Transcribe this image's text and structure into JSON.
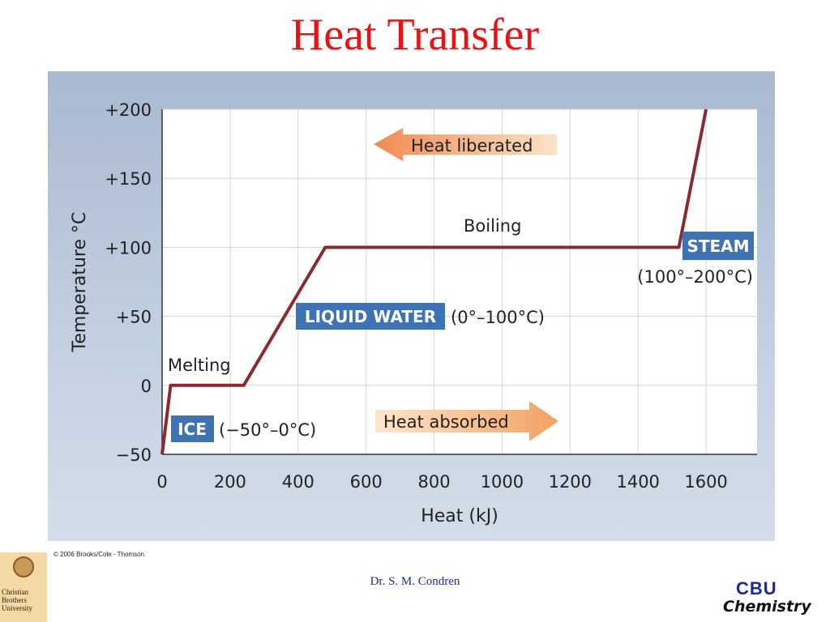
{
  "slide": {
    "title": "Heat Transfer",
    "copyright": "© 2006 Brooks/Cole - Thomson",
    "footer": "Dr. S. M. Condren",
    "university_logo_text": "Christian Brothers University",
    "cbu_logo_top": "CBU",
    "cbu_logo_bottom": "Chemistry"
  },
  "chart_data": {
    "type": "line",
    "title": "",
    "xlabel": "Heat (kJ)",
    "ylabel": "Temperature °C",
    "xlim": [
      0,
      1750
    ],
    "ylim": [
      -50,
      200
    ],
    "x_ticks": [
      0,
      200,
      400,
      600,
      800,
      1000,
      1200,
      1400,
      1600
    ],
    "y_ticks": [
      -50,
      0,
      50,
      100,
      150,
      200
    ],
    "y_tick_labels": [
      "−50",
      "0",
      "+50",
      "+100",
      "+150",
      "+200"
    ],
    "grid": true,
    "series": [
      {
        "color": "#8b2a2e",
        "x": [
          0,
          25,
          240,
          480,
          1520,
          1600
        ],
        "y": [
          -50,
          0,
          0,
          100,
          100,
          200
        ]
      }
    ],
    "annotations": {
      "melting": "Melting",
      "boiling": "Boiling",
      "ice_label": "ICE",
      "ice_range": "(−50°–0°C)",
      "water_label": "LIQUID WATER",
      "water_range": "(0°–100°C)",
      "steam_label": "STEAM",
      "steam_range": "(100°–200°C)",
      "heat_liberated": "Heat liberated",
      "heat_absorbed": "Heat absorbed"
    },
    "colors": {
      "plot_bg": "#ffffff",
      "line": "#8b2a2e",
      "label_box": "#3d73b5",
      "arrow_left": "#f0a06a",
      "arrow_right": "#f5b87a"
    }
  }
}
